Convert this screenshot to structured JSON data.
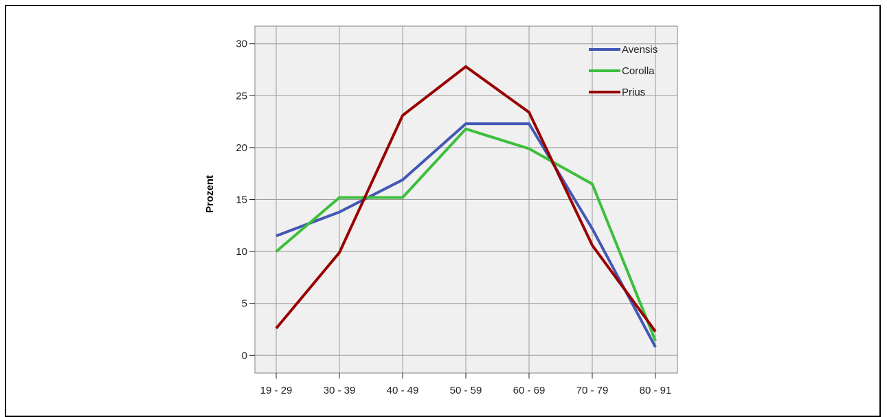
{
  "chart_data": {
    "type": "line",
    "categories": [
      "19 - 29",
      "30 - 39",
      "40 - 49",
      "50 - 59",
      "60 - 69",
      "70 - 79",
      "80 - 91"
    ],
    "series": [
      {
        "name": "Avensis",
        "color": "#4358b4",
        "values": [
          11.5,
          13.8,
          16.9,
          22.3,
          22.3,
          12.2,
          0.8
        ]
      },
      {
        "name": "Corolla",
        "color": "#3cbf3c",
        "values": [
          10.0,
          15.2,
          15.2,
          21.8,
          19.9,
          16.5,
          1.4
        ]
      },
      {
        "name": "Prius",
        "color": "#990000",
        "values": [
          2.6,
          9.9,
          23.1,
          27.8,
          23.4,
          10.6,
          2.3
        ]
      }
    ],
    "ylabel": "Prozent",
    "xlabel": "",
    "ylim": [
      -1.7,
      31.7
    ],
    "yticks": [
      0,
      5,
      10,
      15,
      20,
      25,
      30
    ],
    "grid": true,
    "legend_position": "top-right",
    "plot_background": "#f0f0f0"
  }
}
